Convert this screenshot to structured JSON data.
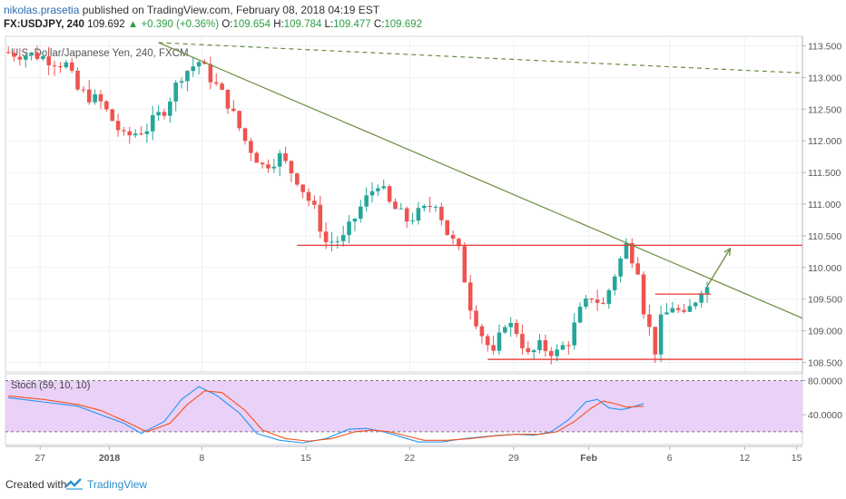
{
  "header": {
    "author": "nikolas.prasetia",
    "published_text": "published on TradingView.com, February 08, 2018 04:19 EST",
    "symbol": "FX:USDJPY, 240",
    "last": "109.692",
    "change_arrow": "▲",
    "change": "+0.390 (+0.36%)",
    "open_label": "O:",
    "open": "109.654",
    "high_label": "H:",
    "high": "109.784",
    "low_label": "L:",
    "low": "109.477",
    "close_label": "C:",
    "close": "109.692"
  },
  "footer": {
    "created_with": "Created with",
    "brand": "TradingView"
  },
  "colors": {
    "up": "#26a69a",
    "down": "#ef5350",
    "trend": "#6b8e3e",
    "level": "#e53935",
    "stoch_k": "#2196f3",
    "stoch_d": "#f4511e",
    "stoch_bg": "#ead1f7",
    "grid": "#eef0f3"
  },
  "chart_data": [
    {
      "type": "candlestick",
      "title": "U.S. Dollar/Japanese Yen, 240, FXCM",
      "x_ticks": [
        "27",
        "2018",
        "8",
        "15",
        "22",
        "29",
        "Feb",
        "6",
        "12",
        "15"
      ],
      "y_ticks": [
        "113.500",
        "113.000",
        "112.500",
        "112.000",
        "111.500",
        "111.000",
        "110.500",
        "110.000",
        "109.500",
        "109.000",
        "108.500"
      ],
      "ylim": [
        108.35,
        113.65
      ],
      "price_path": [
        [
          0,
          113.4
        ],
        [
          6,
          113.35
        ],
        [
          11,
          113.2
        ],
        [
          13,
          112.8
        ],
        [
          17,
          112.6
        ],
        [
          21,
          112.05
        ],
        [
          25,
          112.2
        ],
        [
          28,
          112.5
        ],
        [
          31,
          113.05
        ],
        [
          34,
          113.25
        ],
        [
          36,
          113.0
        ],
        [
          39,
          112.6
        ],
        [
          42,
          112.0
        ],
        [
          45,
          111.6
        ],
        [
          48,
          111.75
        ],
        [
          51,
          111.4
        ],
        [
          54,
          110.9
        ],
        [
          56,
          110.4
        ],
        [
          59,
          110.45
        ],
        [
          62,
          110.95
        ],
        [
          65,
          111.35
        ],
        [
          67,
          111.0
        ],
        [
          70,
          110.75
        ],
        [
          73,
          110.9
        ],
        [
          75,
          111.05
        ],
        [
          77,
          110.55
        ],
        [
          79,
          110.25
        ],
        [
          81,
          109.4
        ],
        [
          83,
          108.95
        ],
        [
          85,
          108.6
        ],
        [
          87,
          109.15
        ],
        [
          89,
          109.0
        ],
        [
          91,
          108.6
        ],
        [
          93,
          108.75
        ],
        [
          96,
          108.65
        ],
        [
          98,
          108.85
        ],
        [
          100,
          109.3
        ],
        [
          102,
          109.55
        ],
        [
          104,
          109.4
        ],
        [
          106,
          109.9
        ],
        [
          108,
          110.35
        ],
        [
          110,
          110.0
        ],
        [
          111,
          109.35
        ],
        [
          113,
          108.7
        ],
        [
          114,
          109.15
        ],
        [
          116,
          109.4
        ],
        [
          118,
          109.2
        ],
        [
          120,
          109.5
        ],
        [
          121,
          109.69
        ]
      ],
      "total_bars": 122,
      "horizontal_levels": [
        {
          "value": 110.35,
          "from_bar": 50,
          "to_bar": "end"
        },
        {
          "value": 108.55,
          "from_bar": 83,
          "to_bar": "end"
        },
        {
          "value": 109.58,
          "from_bar": 112,
          "to_bar": 121
        }
      ],
      "trendlines": [
        {
          "style": "solid",
          "from": [
            26,
            113.55
          ],
          "to": [
            "end",
            109.2
          ]
        },
        {
          "style": "dashed",
          "from": [
            26,
            113.55
          ],
          "to": [
            "end",
            113.07
          ]
        }
      ],
      "arrow": {
        "from": [
          121,
          109.7
        ],
        "to": [
          125,
          110.3
        ]
      },
      "grid": true
    },
    {
      "type": "line",
      "title": "Stoch (59, 10, 10)",
      "y_ticks": [
        "80.0000",
        "40.0000"
      ],
      "ylim": [
        5,
        88
      ],
      "levels": [
        80,
        20
      ],
      "series": [
        {
          "name": "%K",
          "values": [
            [
              0,
              60
            ],
            [
              6,
              55
            ],
            [
              12,
              50
            ],
            [
              16,
              40
            ],
            [
              20,
              30
            ],
            [
              23,
              18
            ],
            [
              27,
              32
            ],
            [
              30,
              58
            ],
            [
              33,
              73
            ],
            [
              36,
              63
            ],
            [
              40,
              42
            ],
            [
              43,
              18
            ],
            [
              47,
              10
            ],
            [
              51,
              7
            ],
            [
              55,
              12
            ],
            [
              59,
              23
            ],
            [
              62,
              24
            ],
            [
              65,
              20
            ],
            [
              68,
              14
            ],
            [
              71,
              8
            ],
            [
              75,
              8
            ],
            [
              79,
              12
            ],
            [
              82,
              14
            ],
            [
              85,
              16
            ],
            [
              88,
              17
            ],
            [
              91,
              16
            ],
            [
              94,
              20
            ],
            [
              97,
              34
            ],
            [
              100,
              55
            ],
            [
              102,
              58
            ],
            [
              104,
              48
            ],
            [
              106,
              46
            ],
            [
              107,
              47
            ],
            [
              110,
              53
            ]
          ]
        },
        {
          "name": "%D",
          "values": [
            [
              0,
              62
            ],
            [
              6,
              58
            ],
            [
              12,
              52
            ],
            [
              16,
              45
            ],
            [
              20,
              33
            ],
            [
              24,
              20
            ],
            [
              28,
              30
            ],
            [
              31,
              52
            ],
            [
              34,
              68
            ],
            [
              37,
              66
            ],
            [
              41,
              45
            ],
            [
              44,
              22
            ],
            [
              48,
              12
            ],
            [
              52,
              9
            ],
            [
              56,
              12
            ],
            [
              60,
              20
            ],
            [
              63,
              22
            ],
            [
              66,
              20
            ],
            [
              69,
              15
            ],
            [
              72,
              10
            ],
            [
              76,
              10
            ],
            [
              80,
              12
            ],
            [
              84,
              15
            ],
            [
              88,
              17
            ],
            [
              92,
              17
            ],
            [
              95,
              20
            ],
            [
              98,
              32
            ],
            [
              101,
              48
            ],
            [
              103,
              56
            ],
            [
              105,
              53
            ],
            [
              107,
              49
            ],
            [
              110,
              50
            ]
          ]
        }
      ]
    }
  ]
}
